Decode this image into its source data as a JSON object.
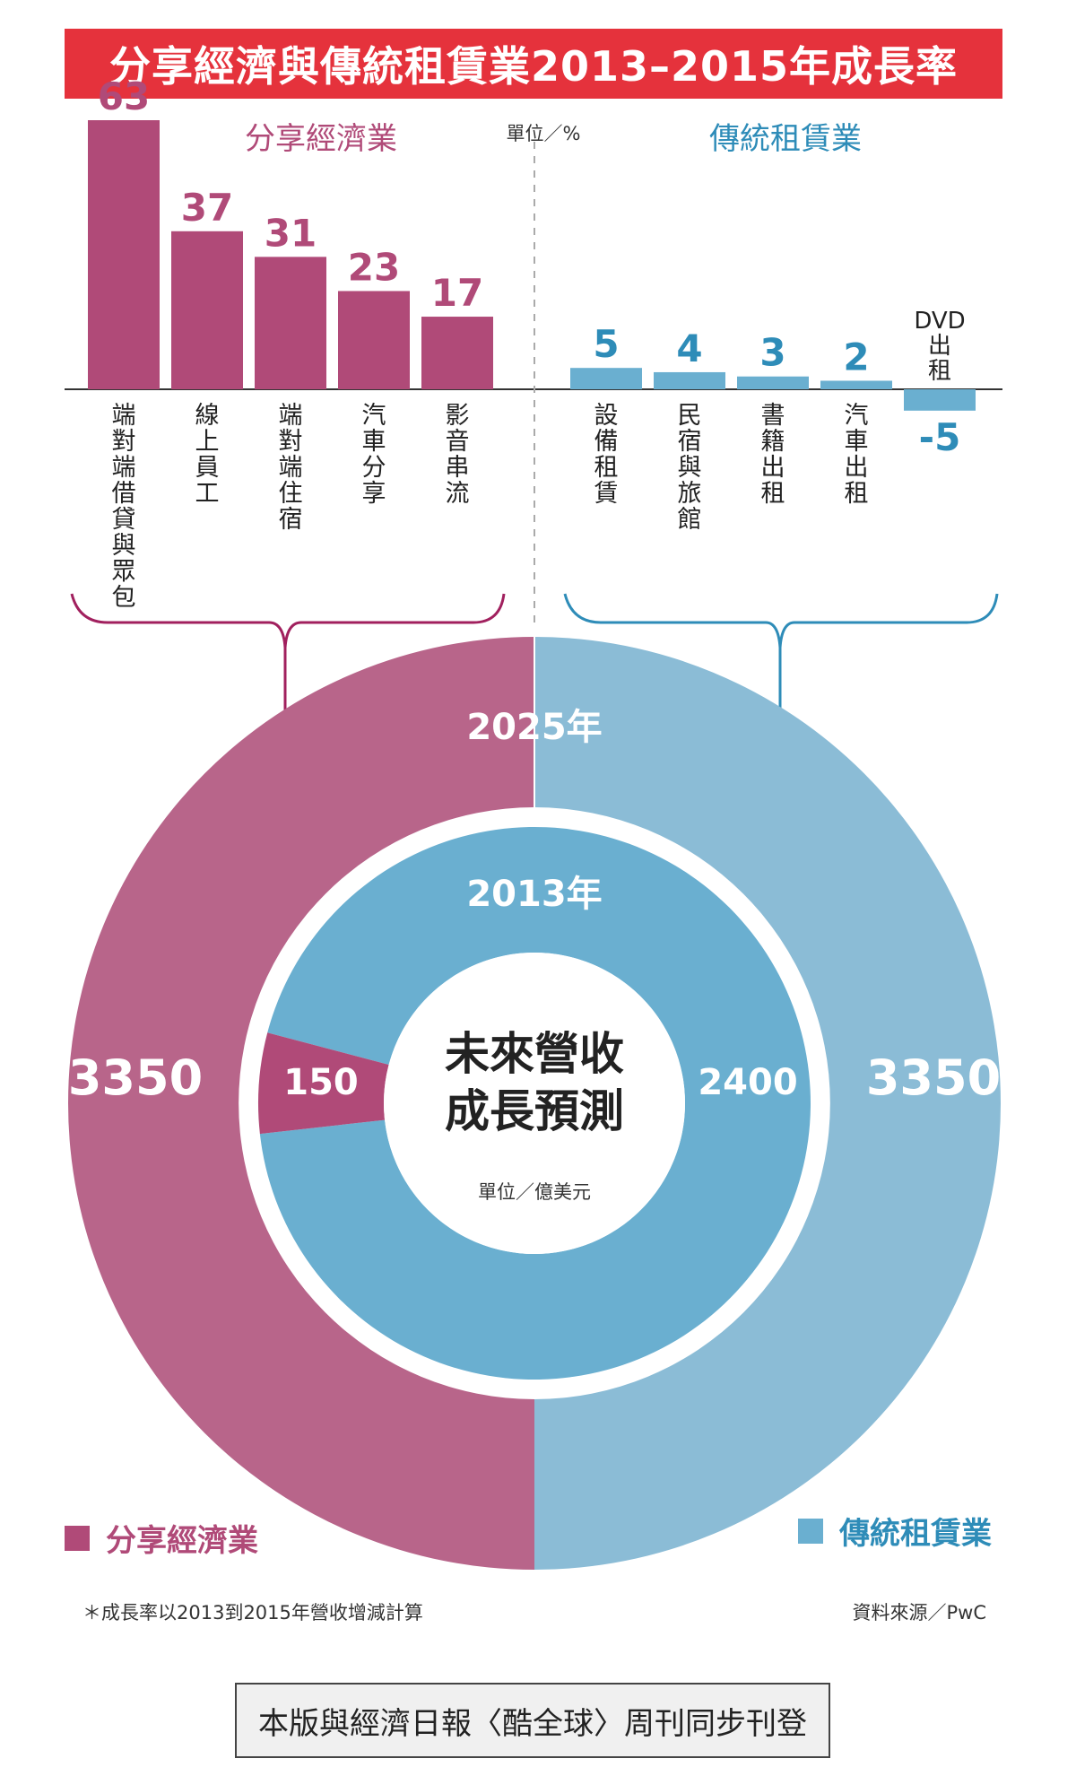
{
  "title": "分享經濟與傳統租賃業2013–2015年成長率",
  "unit_pct": "單位／%",
  "unit_money": "單位／億美元",
  "center_label_line1": "未來營收",
  "center_label_line2": "成長預測",
  "footnote": "＊成長率以2013到2015年營收增減計算",
  "source": "資料來源／PwC",
  "bottom_note": "本版與經濟日報〈酷全球〉周刊同步刊登",
  "colors": {
    "sharing": "#b04a78",
    "sharing_light": "#b8658a",
    "traditional": "#6aafd0",
    "traditional_light": "#8bbcd6",
    "title_bg": "#e5323c"
  },
  "chart_data": [
    {
      "type": "bar",
      "title": "分享經濟業",
      "ylabel": "單位／%",
      "categories": [
        "端對端借貸與眾包",
        "線上員工",
        "端對端住宿",
        "汽車分享",
        "影音串流"
      ],
      "values": [
        63,
        37,
        31,
        23,
        17
      ],
      "color": "#b04a78"
    },
    {
      "type": "bar",
      "title": "傳統租賃業",
      "ylabel": "單位／%",
      "categories": [
        "設備租賃",
        "民宿與旅館",
        "書籍出租",
        "汽車出租",
        "DVD出租"
      ],
      "values": [
        5,
        4,
        3,
        2,
        -5
      ],
      "color": "#6aafd0"
    },
    {
      "type": "pie",
      "title": "未來營收成長預測",
      "unit": "單位／億美元",
      "rings": [
        {
          "label": "2013年",
          "slices": [
            {
              "name": "分享經濟業",
              "value": 150
            },
            {
              "name": "傳統租賃業",
              "value": 2400
            }
          ]
        },
        {
          "label": "2025年",
          "slices": [
            {
              "name": "分享經濟業",
              "value": 3350
            },
            {
              "name": "傳統租賃業",
              "value": 3350
            }
          ]
        }
      ],
      "legend": [
        "分享經濟業",
        "傳統租賃業"
      ]
    }
  ]
}
